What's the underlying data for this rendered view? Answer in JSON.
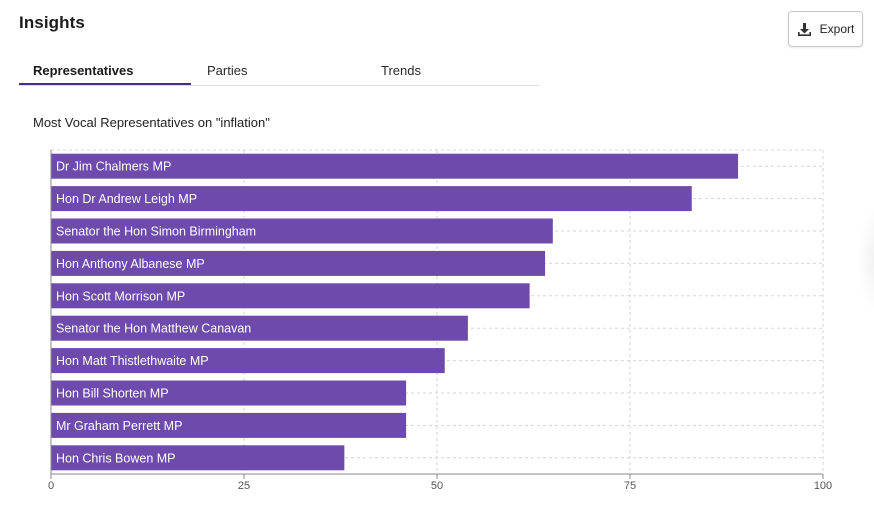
{
  "header": {
    "title": "Insights",
    "export_label": "Export"
  },
  "tabs": [
    {
      "label": "Representatives",
      "active": true
    },
    {
      "label": "Parties",
      "active": false
    },
    {
      "label": "Trends",
      "active": false
    }
  ],
  "colors": {
    "bar": "#6d4aab",
    "accent": "#4b2a8f",
    "grid": "#d6d6d6"
  },
  "chart_data": {
    "type": "bar",
    "orientation": "horizontal",
    "title": "Most Vocal Representatives on \"inflation\"",
    "categories": [
      "Dr Jim Chalmers MP",
      "Hon Dr Andrew Leigh MP",
      "Senator the Hon Simon Birmingham",
      "Hon Anthony Albanese MP",
      "Hon Scott Morrison MP",
      "Senator the Hon Matthew Canavan",
      "Hon Matt Thistlethwaite MP",
      "Hon Bill Shorten MP",
      "Mr Graham Perrett MP",
      "Hon Chris Bowen MP"
    ],
    "values": [
      89,
      83,
      65,
      64,
      62,
      54,
      51,
      46,
      46,
      38
    ],
    "xlim": [
      0,
      100
    ],
    "xticks": [
      0,
      25,
      50,
      75,
      100
    ],
    "grid": true,
    "legend": "none"
  }
}
